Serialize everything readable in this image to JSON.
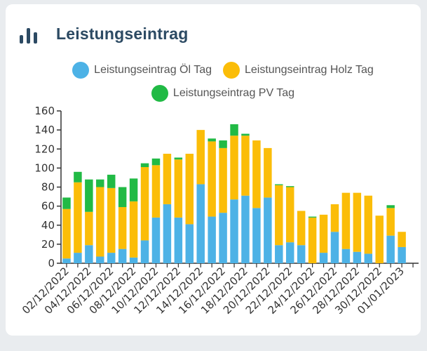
{
  "header": {
    "title": "Leistungseintrag",
    "icon": "bar-chart-icon"
  },
  "colors": {
    "oel": "#4db2e6",
    "holz": "#fbbd08",
    "pv": "#21ba45",
    "title": "#2c4a63"
  },
  "chart_data": {
    "type": "bar",
    "stacked": true,
    "title": "Leistungseintrag",
    "ylim": [
      0,
      160
    ],
    "yticks": [
      0,
      20,
      40,
      60,
      80,
      100,
      120,
      140,
      160
    ],
    "legend_position": "top",
    "categories": [
      "02/12/2022",
      "03/12/2022",
      "04/12/2022",
      "05/12/2022",
      "06/12/2022",
      "07/12/2022",
      "08/12/2022",
      "09/12/2022",
      "10/12/2022",
      "11/12/2022",
      "12/12/2022",
      "13/12/2022",
      "14/12/2022",
      "15/12/2022",
      "16/12/2022",
      "17/12/2022",
      "18/12/2022",
      "19/12/2022",
      "20/12/2022",
      "21/12/2022",
      "22/12/2022",
      "23/12/2022",
      "24/12/2022",
      "25/12/2022",
      "26/12/2022",
      "27/12/2022",
      "28/12/2022",
      "29/12/2022",
      "30/12/2022",
      "31/12/2022",
      "01/01/2023",
      "02/01/2023"
    ],
    "x_tick_labels": [
      "02/12/2022",
      "",
      "04/12/2022",
      "",
      "06/12/2022",
      "",
      "08/12/2022",
      "",
      "10/12/2022",
      "",
      "12/12/2022",
      "",
      "14/12/2022",
      "",
      "16/12/2022",
      "",
      "18/12/2022",
      "",
      "20/12/2022",
      "",
      "22/12/2022",
      "",
      "24/12/2022",
      "",
      "26/12/2022",
      "",
      "28/12/2022",
      "",
      "30/12/2022",
      "",
      "01/01/2023",
      ""
    ],
    "series": [
      {
        "name": "Leistungseintrag Öl Tag",
        "color": "#4db2e6",
        "values": [
          5,
          11,
          19,
          7,
          11,
          15,
          6,
          24,
          48,
          62,
          48,
          41,
          83,
          49,
          53,
          67,
          71,
          58,
          69,
          19,
          22,
          19,
          0,
          11,
          33,
          15,
          12,
          10,
          0,
          29,
          17,
          0
        ]
      },
      {
        "name": "Leistungseintrag Holz Tag",
        "color": "#fbbd08",
        "values": [
          52,
          74,
          35,
          73,
          68,
          44,
          59,
          77,
          55,
          53,
          61,
          74,
          57,
          79,
          68,
          67,
          63,
          71,
          52,
          63,
          58,
          36,
          48,
          40,
          29,
          59,
          62,
          61,
          50,
          29,
          16,
          0
        ]
      },
      {
        "name": "Leistungseintrag PV Tag",
        "color": "#21ba45",
        "values": [
          12,
          11,
          34,
          8,
          14,
          21,
          24,
          4,
          7,
          0,
          2,
          0,
          0,
          3,
          8,
          12,
          2,
          0,
          0,
          1,
          1,
          0,
          1,
          0,
          0,
          0,
          0,
          0,
          0,
          3,
          0,
          0
        ]
      }
    ]
  }
}
